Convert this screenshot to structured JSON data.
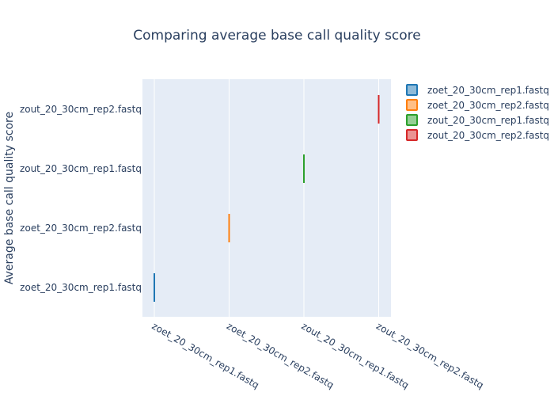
{
  "chart_data": {
    "type": "box",
    "title": "Comparing average base call quality score",
    "xlabel": "",
    "ylabel": "Average base call quality score",
    "categories": [
      "zoet_20_30cm_rep1.fastq",
      "zoet_20_30cm_rep2.fastq",
      "zout_20_30cm_rep1.fastq",
      "zout_20_30cm_rep2.fastq"
    ],
    "series": [
      {
        "name": "zoet_20_30cm_rep1.fastq",
        "x": "zoet_20_30cm_rep1.fastq",
        "y": "zoet_20_30cm_rep1.fastq",
        "color": "#1f77b4"
      },
      {
        "name": "zoet_20_30cm_rep2.fastq",
        "x": "zoet_20_30cm_rep2.fastq",
        "y": "zoet_20_30cm_rep2.fastq",
        "color": "#ff7f0e"
      },
      {
        "name": "zout_20_30cm_rep1.fastq",
        "x": "zout_20_30cm_rep1.fastq",
        "y": "zout_20_30cm_rep1.fastq",
        "color": "#2ca02c"
      },
      {
        "name": "zout_20_30cm_rep2.fastq",
        "x": "zout_20_30cm_rep2.fastq",
        "y": "zout_20_30cm_rep2.fastq",
        "color": "#d62728"
      }
    ],
    "legend_position": "top-right",
    "grid": true,
    "plot_background": "#e5ecf6"
  }
}
